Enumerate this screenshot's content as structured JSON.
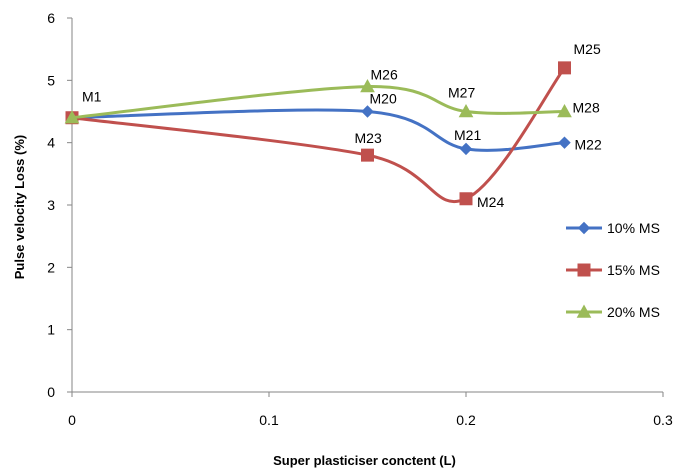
{
  "chart_data": {
    "type": "line",
    "title": "",
    "xlabel": "Super plasticiser conctent (L)",
    "ylabel": "Pulse velocity Loss (%)",
    "xlim": [
      0,
      0.3
    ],
    "ylim": [
      0,
      6
    ],
    "xticks": [
      0,
      0.1,
      0.2,
      0.3
    ],
    "xtick_labels": [
      "0",
      "0.1",
      "0.2",
      "0.3"
    ],
    "yticks": [
      0,
      1,
      2,
      3,
      4,
      5,
      6
    ],
    "ytick_labels": [
      "0",
      "1",
      "2",
      "3",
      "4",
      "5",
      "6"
    ],
    "grid": false,
    "legend_position": "right",
    "smooth": true,
    "series": [
      {
        "name": "10% MS",
        "color": "#4472C4",
        "marker": "diamond",
        "x": [
          0,
          0.15,
          0.2,
          0.25
        ],
        "y": [
          4.4,
          4.5,
          3.9,
          4.0
        ],
        "point_labels": [
          "M1",
          "M20",
          "M21",
          "M22"
        ]
      },
      {
        "name": "15% MS",
        "color": "#C0504D",
        "marker": "square",
        "x": [
          0,
          0.15,
          0.2,
          0.25
        ],
        "y": [
          4.4,
          3.8,
          3.1,
          5.2
        ],
        "point_labels": [
          "",
          "M23",
          "M24",
          "M25"
        ]
      },
      {
        "name": "20% MS",
        "color": "#9BBB59",
        "marker": "triangle",
        "x": [
          0,
          0.15,
          0.2,
          0.25
        ],
        "y": [
          4.4,
          4.9,
          4.5,
          4.5
        ],
        "point_labels": [
          "",
          "M26",
          "M27",
          "M28"
        ]
      }
    ]
  }
}
